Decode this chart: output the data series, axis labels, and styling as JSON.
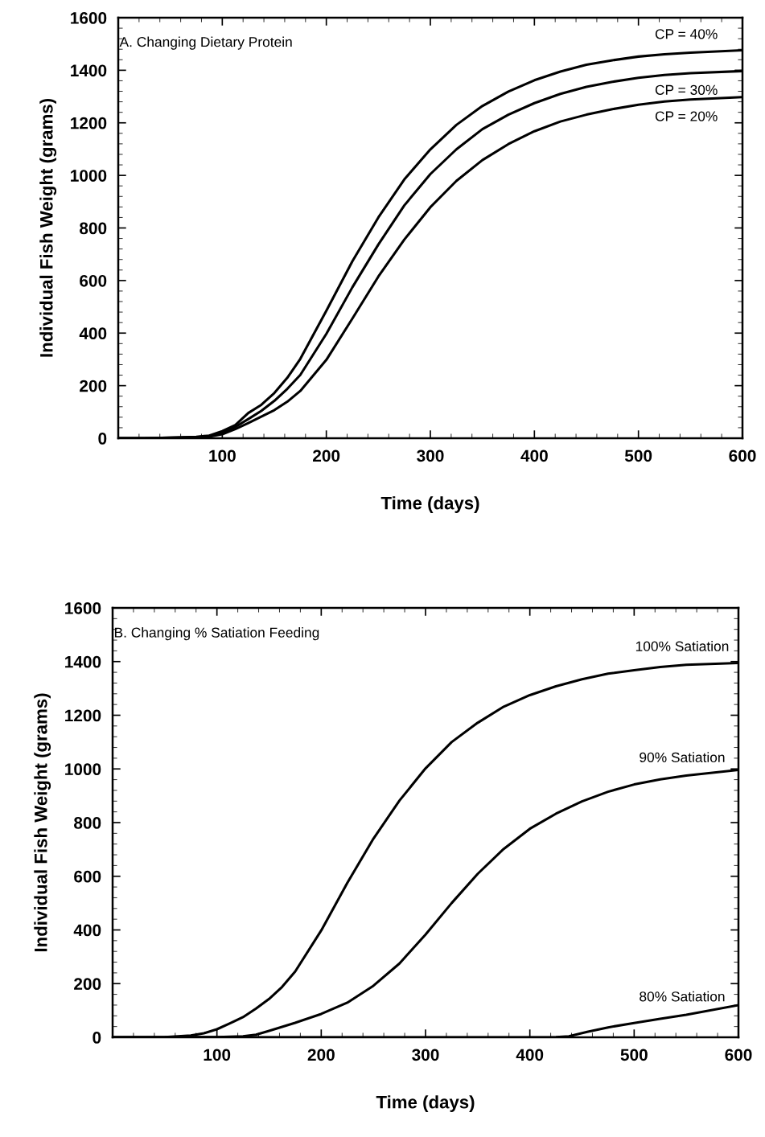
{
  "chart_data": [
    {
      "type": "line",
      "xlabel": "Time (days)",
      "ylabel": "Individual Fish Weight (grams)",
      "xlim": [
        0,
        600
      ],
      "ylim": [
        0,
        1600
      ],
      "xticks": [
        100,
        200,
        300,
        400,
        500,
        600
      ],
      "yticks": [
        0,
        200,
        400,
        600,
        800,
        1000,
        1200,
        1400,
        1600
      ],
      "grid": false,
      "legend": "right",
      "marker": "none",
      "line_style": "solid",
      "annotations": [
        "A. Changing Dietary Protein"
      ],
      "series": [
        {
          "name": "CP = 40%",
          "color": "#000000",
          "x": [
            0,
            25,
            50,
            75,
            87.5,
            100,
            112.5,
            125,
            137.5,
            150,
            162.5,
            175,
            200,
            225,
            250,
            275,
            300,
            325,
            350,
            375,
            400,
            425,
            450,
            475,
            500,
            525,
            550,
            600
          ],
          "values": [
            0,
            0,
            2,
            5,
            10,
            27,
            50,
            96,
            127,
            172,
            230,
            302,
            485,
            673,
            840,
            985,
            1099,
            1192,
            1264,
            1319,
            1362,
            1395,
            1421,
            1438,
            1452,
            1461,
            1467,
            1476
          ]
        },
        {
          "name": "CP = 30%",
          "color": "#000000",
          "x": [
            0,
            25,
            50,
            75,
            87.5,
            100,
            112.5,
            125,
            137.5,
            150,
            162.5,
            175,
            200,
            225,
            250,
            275,
            300,
            325,
            350,
            375,
            400,
            425,
            450,
            475,
            500,
            525,
            550,
            600
          ],
          "values": [
            0,
            0,
            2,
            4,
            8,
            20,
            43,
            73,
            104,
            142,
            188,
            241,
            397,
            574,
            737,
            886,
            1005,
            1099,
            1176,
            1231,
            1275,
            1310,
            1337,
            1356,
            1371,
            1382,
            1389,
            1397
          ]
        },
        {
          "name": "CP = 20%",
          "color": "#000000",
          "x": [
            0,
            25,
            50,
            75,
            87.5,
            100,
            112.5,
            125,
            150,
            162.5,
            175,
            200,
            225,
            250,
            275,
            300,
            325,
            350,
            375,
            400,
            425,
            450,
            475,
            500,
            525,
            550,
            600
          ],
          "values": [
            0,
            0,
            1,
            3,
            6,
            15,
            35,
            58,
            107,
            139,
            180,
            298,
            455,
            615,
            756,
            879,
            979,
            1058,
            1119,
            1168,
            1205,
            1231,
            1252,
            1269,
            1281,
            1289,
            1298
          ]
        }
      ]
    },
    {
      "type": "line",
      "xlabel": "Time (days)",
      "ylabel": "Individual Fish Weight (grams)",
      "xlim": [
        0,
        600
      ],
      "ylim": [
        0,
        1600
      ],
      "xticks": [
        100,
        200,
        300,
        400,
        500,
        600
      ],
      "yticks": [
        0,
        200,
        400,
        600,
        800,
        1000,
        1200,
        1400,
        1600
      ],
      "grid": false,
      "legend": "right",
      "marker": "none",
      "line_style": "solid",
      "annotations": [
        "B. Changing % Satiation Feeding"
      ],
      "series": [
        {
          "name": "100% Satiation",
          "color": "#000000",
          "x": [
            0,
            50,
            75,
            87.5,
            100,
            112.5,
            125,
            137.5,
            150,
            162.5,
            175,
            200,
            225,
            250,
            275,
            300,
            325,
            350,
            375,
            400,
            425,
            450,
            475,
            500,
            525,
            550,
            600
          ],
          "values": [
            0,
            1,
            7,
            15,
            30,
            52,
            75,
            107,
            143,
            188,
            245,
            398,
            575,
            740,
            882,
            1002,
            1100,
            1172,
            1232,
            1275,
            1308,
            1334,
            1355,
            1368,
            1380,
            1388,
            1395
          ]
        },
        {
          "name": "90% Satiation",
          "color": "#000000",
          "x": [
            0,
            100,
            125,
            137.5,
            150,
            175,
            200,
            225,
            250,
            275,
            300,
            325,
            350,
            375,
            400,
            425,
            450,
            475,
            500,
            525,
            550,
            600
          ],
          "values": [
            0,
            1,
            4,
            10,
            24,
            54,
            87,
            129,
            192,
            275,
            383,
            500,
            609,
            702,
            777,
            833,
            879,
            915,
            942,
            961,
            975,
            996
          ]
        },
        {
          "name": "80% Satiation",
          "color": "#000000",
          "x": [
            0,
            100,
            200,
            300,
            400,
            425,
            437.5,
            455,
            475,
            500,
            525,
            550,
            600
          ],
          "values": [
            0,
            0,
            0,
            0,
            0,
            1,
            4,
            20,
            37,
            53,
            69,
            84,
            120
          ]
        }
      ]
    }
  ]
}
